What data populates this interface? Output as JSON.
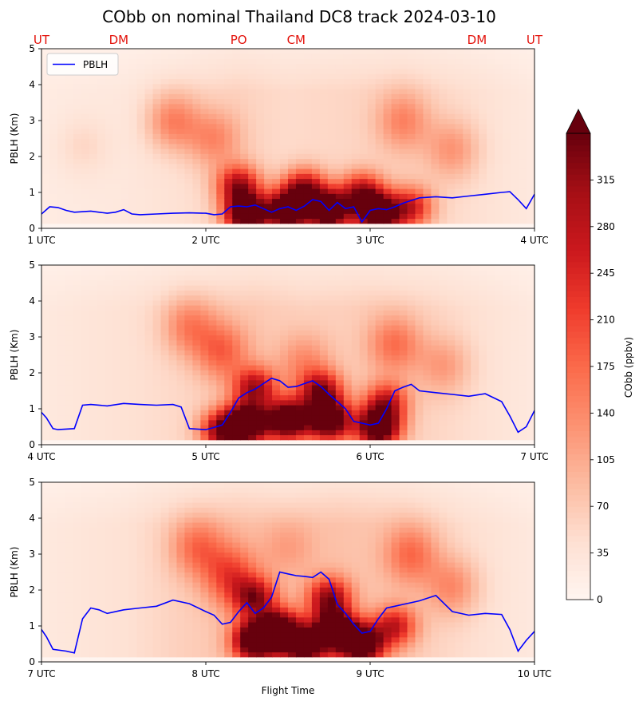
{
  "title": "CObb on nominal Thailand DC8 track 2024-03-10",
  "station_labels": {
    "color": "#e3120b",
    "items": [
      {
        "name": "UT",
        "hour": 1.0
      },
      {
        "name": "DM",
        "hour": 1.47
      },
      {
        "name": "PO",
        "hour": 2.2
      },
      {
        "name": "CM",
        "hour": 2.55
      },
      {
        "name": "DM",
        "hour": 3.65
      },
      {
        "name": "UT",
        "hour": 4.0
      }
    ]
  },
  "colorbar": {
    "label": "CObb (ppbv)",
    "ticks": [
      0,
      35,
      70,
      105,
      140,
      175,
      210,
      245,
      280,
      315
    ],
    "tick_labels": [
      "0",
      "35",
      "70",
      "105",
      "140",
      "175",
      "210",
      "245",
      "280",
      "315"
    ],
    "min": 0,
    "max": 350,
    "extend": "max",
    "colormap": "Reds",
    "low_color": "#fff5f0",
    "high_color": "#67000d"
  },
  "chart_data": [
    {
      "type": "heatmap",
      "xlabel": "",
      "ylabel": "PBLH (Km)",
      "xlim": [
        1,
        4
      ],
      "ylim": [
        0,
        5
      ],
      "xticks": [
        1,
        2,
        3,
        4
      ],
      "xtick_labels": [
        "1 UTC",
        "2 UTC",
        "3 UTC",
        "4 UTC"
      ],
      "yticks": [
        0,
        1,
        2,
        3,
        4,
        5
      ],
      "ytick_labels": [
        "0",
        "1",
        "2",
        "3",
        "4",
        "5"
      ],
      "legend": {
        "position": "upper-left",
        "entries": [
          "PBLH"
        ]
      },
      "series": [
        {
          "name": "PBLH",
          "color": "#0000ff",
          "x": [
            1.0,
            1.05,
            1.1,
            1.15,
            1.2,
            1.3,
            1.4,
            1.45,
            1.5,
            1.55,
            1.6,
            1.7,
            1.8,
            1.9,
            2.0,
            2.05,
            2.1,
            2.15,
            2.2,
            2.25,
            2.3,
            2.35,
            2.4,
            2.45,
            2.5,
            2.55,
            2.6,
            2.65,
            2.7,
            2.75,
            2.8,
            2.85,
            2.9,
            2.95,
            3.0,
            3.05,
            3.1,
            3.15,
            3.2,
            3.3,
            3.4,
            3.5,
            3.6,
            3.7,
            3.8,
            3.85,
            3.9,
            3.95,
            4.0
          ],
          "values": [
            0.4,
            0.6,
            0.58,
            0.5,
            0.45,
            0.48,
            0.42,
            0.45,
            0.52,
            0.4,
            0.38,
            0.4,
            0.42,
            0.43,
            0.42,
            0.38,
            0.4,
            0.6,
            0.62,
            0.6,
            0.65,
            0.55,
            0.45,
            0.55,
            0.6,
            0.5,
            0.62,
            0.8,
            0.75,
            0.5,
            0.72,
            0.55,
            0.6,
            0.18,
            0.5,
            0.55,
            0.52,
            0.6,
            0.7,
            0.85,
            0.88,
            0.85,
            0.9,
            0.95,
            1.0,
            1.02,
            0.8,
            0.55,
            0.95
          ]
        }
      ],
      "field": {
        "background": [
          {
            "x": 1.0,
            "value": 20
          },
          {
            "x": 1.5,
            "value": 28
          },
          {
            "x": 1.8,
            "value": 40
          },
          {
            "x": 2.2,
            "value": 60
          },
          {
            "x": 2.5,
            "value": 50
          },
          {
            "x": 2.8,
            "value": 55
          },
          {
            "x": 3.2,
            "value": 60
          },
          {
            "x": 3.6,
            "value": 45
          },
          {
            "x": 4.0,
            "value": 25
          }
        ],
        "blobs": [
          {
            "x": 1.8,
            "y": 3.0,
            "value": 110
          },
          {
            "x": 2.05,
            "y": 2.5,
            "value": 90
          },
          {
            "x": 3.2,
            "y": 3.0,
            "value": 90
          },
          {
            "x": 3.5,
            "y": 2.2,
            "value": 80
          },
          {
            "x": 1.25,
            "y": 2.3,
            "value": 30
          }
        ],
        "cores": [
          {
            "x": 2.25,
            "y": 0.4,
            "value": 380
          },
          {
            "x": 2.5,
            "y": 0.5,
            "value": 380
          },
          {
            "x": 2.75,
            "y": 0.5,
            "value": 380
          },
          {
            "x": 3.05,
            "y": 0.4,
            "value": 380
          },
          {
            "x": 2.2,
            "y": 1.2,
            "value": 240
          },
          {
            "x": 2.6,
            "y": 1.1,
            "value": 260
          },
          {
            "x": 2.95,
            "y": 1.0,
            "value": 240
          },
          {
            "x": 3.25,
            "y": 0.6,
            "value": 200
          }
        ]
      }
    },
    {
      "type": "heatmap",
      "xlabel": "",
      "ylabel": "PBLH (Km)",
      "xlim": [
        4,
        7
      ],
      "ylim": [
        0,
        5
      ],
      "xticks": [
        4,
        5,
        6,
        7
      ],
      "xtick_labels": [
        "4 UTC",
        "5 UTC",
        "6 UTC",
        "7 UTC"
      ],
      "yticks": [
        0,
        1,
        2,
        3,
        4,
        5
      ],
      "ytick_labels": [
        "0",
        "1",
        "2",
        "3",
        "4",
        "5"
      ],
      "series": [
        {
          "name": "PBLH",
          "color": "#0000ff",
          "x": [
            4.0,
            4.03,
            4.07,
            4.1,
            4.2,
            4.25,
            4.3,
            4.4,
            4.5,
            4.6,
            4.7,
            4.8,
            4.85,
            4.9,
            5.0,
            5.05,
            5.1,
            5.15,
            5.2,
            5.25,
            5.3,
            5.35,
            5.4,
            5.45,
            5.5,
            5.55,
            5.6,
            5.65,
            5.7,
            5.75,
            5.8,
            5.85,
            5.9,
            5.95,
            6.0,
            6.05,
            6.1,
            6.15,
            6.2,
            6.25,
            6.3,
            6.4,
            6.5,
            6.6,
            6.7,
            6.8,
            6.85,
            6.9,
            6.95,
            7.0
          ],
          "values": [
            0.9,
            0.75,
            0.45,
            0.42,
            0.45,
            1.1,
            1.12,
            1.08,
            1.15,
            1.12,
            1.1,
            1.12,
            1.05,
            0.45,
            0.42,
            0.48,
            0.55,
            0.9,
            1.3,
            1.45,
            1.55,
            1.7,
            1.85,
            1.78,
            1.6,
            1.62,
            1.7,
            1.78,
            1.62,
            1.4,
            1.2,
            1.0,
            0.65,
            0.6,
            0.55,
            0.6,
            1.0,
            1.5,
            1.6,
            1.68,
            1.5,
            1.45,
            1.4,
            1.35,
            1.42,
            1.2,
            0.8,
            0.35,
            0.5,
            0.95
          ]
        }
      ],
      "field": {
        "background": [
          {
            "x": 4.0,
            "value": 25
          },
          {
            "x": 4.5,
            "value": 40
          },
          {
            "x": 4.9,
            "value": 55
          },
          {
            "x": 5.3,
            "value": 70
          },
          {
            "x": 5.6,
            "value": 60
          },
          {
            "x": 6.0,
            "value": 65
          },
          {
            "x": 6.4,
            "value": 55
          },
          {
            "x": 6.8,
            "value": 35
          },
          {
            "x": 7.0,
            "value": 25
          }
        ],
        "blobs": [
          {
            "x": 4.9,
            "y": 3.3,
            "value": 100
          },
          {
            "x": 5.1,
            "y": 2.6,
            "value": 120
          },
          {
            "x": 6.15,
            "y": 2.8,
            "value": 110
          },
          {
            "x": 5.6,
            "y": 2.3,
            "value": 80
          },
          {
            "x": 6.45,
            "y": 2.2,
            "value": 70
          }
        ],
        "cores": [
          {
            "x": 5.25,
            "y": 0.6,
            "value": 380
          },
          {
            "x": 5.5,
            "y": 0.7,
            "value": 380
          },
          {
            "x": 5.75,
            "y": 0.7,
            "value": 380
          },
          {
            "x": 6.05,
            "y": 0.5,
            "value": 380
          },
          {
            "x": 5.3,
            "y": 1.6,
            "value": 230
          },
          {
            "x": 5.7,
            "y": 1.5,
            "value": 250
          },
          {
            "x": 6.1,
            "y": 1.2,
            "value": 200
          },
          {
            "x": 5.1,
            "y": 0.4,
            "value": 260
          }
        ]
      }
    },
    {
      "type": "heatmap",
      "xlabel": "Flight Time",
      "ylabel": "PBLH (Km)",
      "xlim": [
        7,
        10
      ],
      "ylim": [
        0,
        5
      ],
      "xticks": [
        7,
        8,
        9,
        10
      ],
      "xtick_labels": [
        "7 UTC",
        "8 UTC",
        "9 UTC",
        "10 UTC"
      ],
      "yticks": [
        0,
        1,
        2,
        3,
        4,
        5
      ],
      "ytick_labels": [
        "0",
        "1",
        "2",
        "3",
        "4",
        "5"
      ],
      "series": [
        {
          "name": "PBLH",
          "color": "#0000ff",
          "x": [
            7.0,
            7.03,
            7.07,
            7.15,
            7.2,
            7.25,
            7.3,
            7.35,
            7.4,
            7.5,
            7.6,
            7.7,
            7.8,
            7.9,
            8.0,
            8.05,
            8.1,
            8.15,
            8.2,
            8.25,
            8.3,
            8.35,
            8.4,
            8.45,
            8.5,
            8.55,
            8.6,
            8.65,
            8.7,
            8.75,
            8.8,
            8.85,
            8.9,
            8.95,
            9.0,
            9.05,
            9.1,
            9.15,
            9.2,
            9.3,
            9.4,
            9.5,
            9.6,
            9.7,
            9.8,
            9.85,
            9.9,
            9.95,
            10.0
          ],
          "values": [
            0.9,
            0.7,
            0.35,
            0.3,
            0.25,
            1.2,
            1.5,
            1.45,
            1.35,
            1.45,
            1.5,
            1.55,
            1.72,
            1.62,
            1.4,
            1.3,
            1.05,
            1.1,
            1.4,
            1.65,
            1.35,
            1.5,
            1.8,
            2.5,
            2.45,
            2.4,
            2.38,
            2.35,
            2.5,
            2.3,
            1.6,
            1.35,
            1.05,
            0.8,
            0.85,
            1.2,
            1.5,
            1.55,
            1.6,
            1.7,
            1.85,
            1.4,
            1.3,
            1.35,
            1.32,
            0.9,
            0.3,
            0.6,
            0.85
          ]
        }
      ],
      "field": {
        "background": [
          {
            "x": 7.0,
            "value": 25
          },
          {
            "x": 7.5,
            "value": 40
          },
          {
            "x": 7.8,
            "value": 60
          },
          {
            "x": 8.2,
            "value": 80
          },
          {
            "x": 8.5,
            "value": 70
          },
          {
            "x": 8.8,
            "value": 80
          },
          {
            "x": 9.2,
            "value": 70
          },
          {
            "x": 9.6,
            "value": 45
          },
          {
            "x": 10.0,
            "value": 25
          }
        ],
        "blobs": [
          {
            "x": 7.95,
            "y": 3.2,
            "value": 110
          },
          {
            "x": 8.15,
            "y": 2.4,
            "value": 140
          },
          {
            "x": 9.25,
            "y": 3.0,
            "value": 110
          },
          {
            "x": 9.5,
            "y": 2.1,
            "value": 90
          },
          {
            "x": 8.5,
            "y": 3.2,
            "value": 50
          }
        ],
        "cores": [
          {
            "x": 8.3,
            "y": 0.6,
            "value": 380
          },
          {
            "x": 8.45,
            "y": 0.9,
            "value": 360
          },
          {
            "x": 8.78,
            "y": 0.9,
            "value": 370
          },
          {
            "x": 8.95,
            "y": 0.5,
            "value": 380
          },
          {
            "x": 8.3,
            "y": 1.8,
            "value": 230
          },
          {
            "x": 8.75,
            "y": 1.8,
            "value": 240
          },
          {
            "x": 9.15,
            "y": 1.0,
            "value": 200
          },
          {
            "x": 8.6,
            "y": 0.4,
            "value": 300
          }
        ]
      }
    }
  ]
}
